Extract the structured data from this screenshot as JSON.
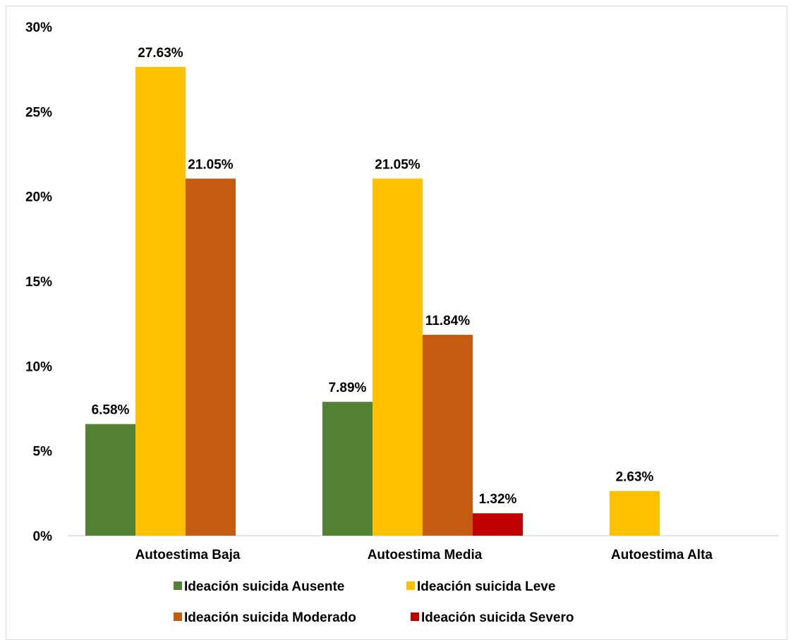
{
  "chart_data": {
    "type": "bar",
    "title": "",
    "xlabel": "",
    "ylabel": "",
    "categories": [
      "Autoestima Baja",
      "Autoestima Media",
      "Autoestima Alta"
    ],
    "ylim": [
      0,
      30
    ],
    "yticks": [
      "0%",
      "5%",
      "10%",
      "15%",
      "20%",
      "25%",
      "30%"
    ],
    "yticks_values": [
      0,
      5,
      10,
      15,
      20,
      25,
      30
    ],
    "grid": false,
    "legend_position": "bottom",
    "series": [
      {
        "name": "Ideación suicida Ausente",
        "color": "#548235",
        "values": [
          6.58,
          7.89,
          null
        ],
        "labels": [
          "6.58%",
          "7.89%",
          ""
        ]
      },
      {
        "name": "Ideación suicida Leve",
        "color": "#FFC000",
        "values": [
          27.63,
          21.05,
          2.63
        ],
        "labels": [
          "27.63%",
          "21.05%",
          "2.63%"
        ]
      },
      {
        "name": "Ideación suicida Moderado",
        "color": "#C55A11",
        "values": [
          21.05,
          11.84,
          null
        ],
        "labels": [
          "21.05%",
          "11.84%",
          ""
        ]
      },
      {
        "name": "Ideación suicida Severo",
        "color": "#C00000",
        "values": [
          null,
          1.32,
          null
        ],
        "labels": [
          "",
          "1.32%",
          ""
        ]
      }
    ]
  }
}
